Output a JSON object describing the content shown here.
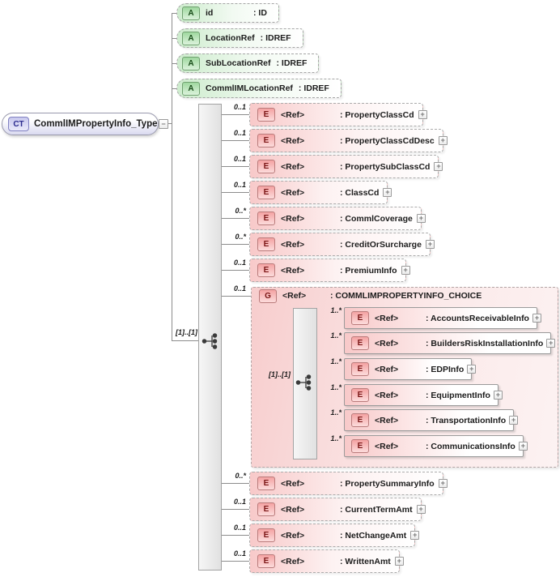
{
  "root_node": {
    "badge": "CT",
    "label": "CommlIMPropertyInfo_Type"
  },
  "glyphs": {
    "expand": "+",
    "collapse": "−"
  },
  "attributes": [
    {
      "badge": "A",
      "name": "id",
      "type": ": ID"
    },
    {
      "badge": "A",
      "name": "LocationRef",
      "type": ": IDREF"
    },
    {
      "badge": "A",
      "name": "SubLocationRef",
      "type": ": IDREF"
    },
    {
      "badge": "A",
      "name": "CommlIMLocationRef",
      "type": ": IDREF"
    }
  ],
  "sequence": {
    "cardinality": "[1]..[1]"
  },
  "elements": [
    {
      "badge": "E",
      "ref": "<Ref>",
      "type": ": PropertyClassCd",
      "cardinality": "0..1"
    },
    {
      "badge": "E",
      "ref": "<Ref>",
      "type": ": PropertyClassCdDesc",
      "cardinality": "0..1"
    },
    {
      "badge": "E",
      "ref": "<Ref>",
      "type": ": PropertySubClassCd",
      "cardinality": "0..1"
    },
    {
      "badge": "E",
      "ref": "<Ref>",
      "type": ": ClassCd",
      "cardinality": "0..1"
    },
    {
      "badge": "E",
      "ref": "<Ref>",
      "type": ": CommlCoverage",
      "cardinality": "0..*"
    },
    {
      "badge": "E",
      "ref": "<Ref>",
      "type": ": CreditOrSurcharge",
      "cardinality": "0..*"
    },
    {
      "badge": "E",
      "ref": "<Ref>",
      "type": ": PremiumInfo",
      "cardinality": "0..1"
    },
    {
      "badge": "E",
      "ref": "<Ref>",
      "type": ": PropertySummaryInfo",
      "cardinality": "0..*"
    },
    {
      "badge": "E",
      "ref": "<Ref>",
      "type": ": CurrentTermAmt",
      "cardinality": "0..1"
    },
    {
      "badge": "E",
      "ref": "<Ref>",
      "type": ": NetChangeAmt",
      "cardinality": "0..1"
    },
    {
      "badge": "E",
      "ref": "<Ref>",
      "type": ": WrittenAmt",
      "cardinality": "0..1"
    }
  ],
  "group": {
    "badge": "G",
    "ref": "<Ref>",
    "label": ": COMMLIMPROPERTYINFO_CHOICE",
    "cardinality": "0..1",
    "choice": {
      "cardinality": "[1]..[1]"
    },
    "children": [
      {
        "badge": "E",
        "ref": "<Ref>",
        "type": ": AccountsReceivableInfo",
        "cardinality": "1..*"
      },
      {
        "badge": "E",
        "ref": "<Ref>",
        "type": ": BuildersRiskInstallationInfo",
        "cardinality": "1..*"
      },
      {
        "badge": "E",
        "ref": "<Ref>",
        "type": ": EDPInfo",
        "cardinality": "1..*"
      },
      {
        "badge": "E",
        "ref": "<Ref>",
        "type": ": EquipmentInfo",
        "cardinality": "1..*"
      },
      {
        "badge": "E",
        "ref": "<Ref>",
        "type": ": TransportationInfo",
        "cardinality": "1..*"
      },
      {
        "badge": "E",
        "ref": "<Ref>",
        "type": ": CommunicationsInfo",
        "cardinality": "1..*"
      }
    ]
  },
  "colors": {
    "attribute_fill": "#cdeccd",
    "element_fill": "#f8c9c9",
    "group_fill": "#f7cdcd",
    "attribute_accent": "#6fa06f",
    "element_accent": "#b97b7b",
    "complextype_accent": "#8282c2",
    "wire": "#8c8c8c"
  }
}
